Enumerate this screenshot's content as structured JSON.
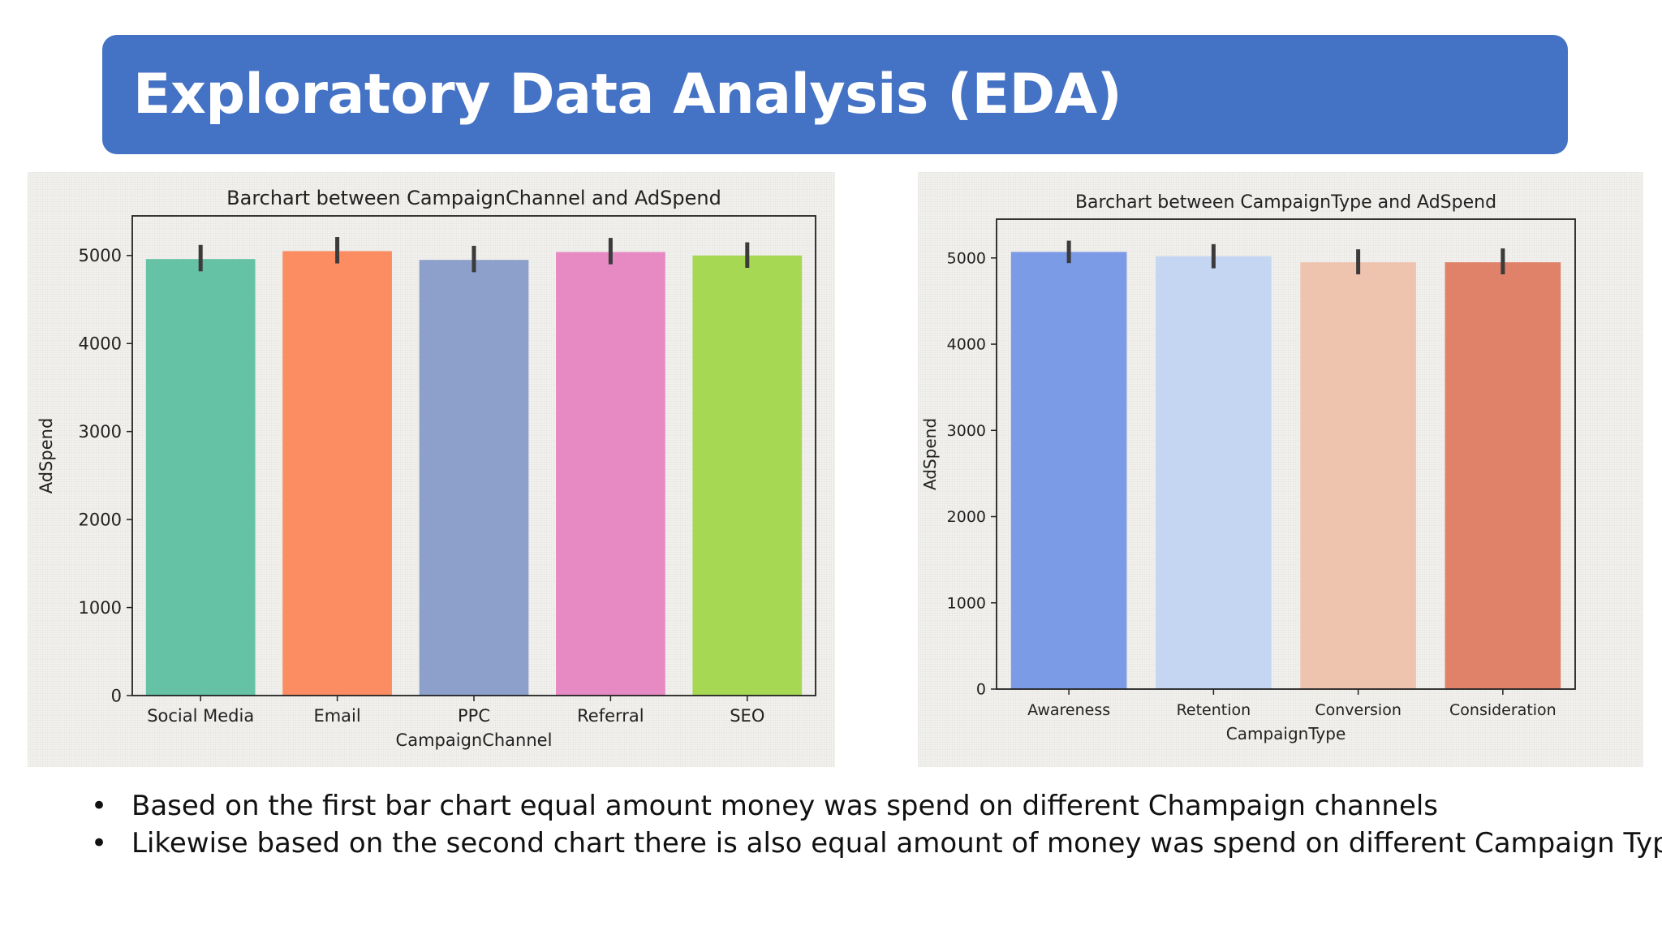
{
  "slide": {
    "title": "Exploratory Data Analysis (EDA)",
    "bullets": [
      "Based on the first bar chart equal amount money was spend on different Champaign channels",
      "Likewise based on the second chart there is also equal amount of money was spend on different Campaign Type"
    ],
    "bullet_symbol": "•",
    "banner_color": "#4472c4"
  },
  "chart_data": [
    {
      "type": "bar",
      "title": "Barchart between CampaignChannel and AdSpend",
      "xlabel": "CampaignChannel",
      "ylabel": "AdSpend",
      "categories": [
        "Social Media",
        "Email",
        "PPC",
        "Referral",
        "SEO"
      ],
      "values": [
        4960,
        5050,
        4950,
        5040,
        5000
      ],
      "error_low": [
        4820,
        4910,
        4810,
        4900,
        4860
      ],
      "error_high": [
        5120,
        5210,
        5110,
        5200,
        5150
      ],
      "colors": [
        "#66c2a5",
        "#fc8d62",
        "#8da0cb",
        "#e78ac3",
        "#a6d854"
      ],
      "ylim": [
        0,
        5450
      ],
      "yticks": [
        0,
        1000,
        2000,
        3000,
        4000,
        5000
      ],
      "grid": false
    },
    {
      "type": "bar",
      "title": "Barchart between CampaignType and AdSpend",
      "xlabel": "CampaignType",
      "ylabel": "AdSpend",
      "categories": [
        "Awareness",
        "Retention",
        "Conversion",
        "Consideration"
      ],
      "values": [
        5070,
        5020,
        4950,
        4950
      ],
      "error_low": [
        4940,
        4880,
        4810,
        4810
      ],
      "error_high": [
        5200,
        5160,
        5100,
        5110
      ],
      "colors": [
        "#7b9be6",
        "#c4d6f2",
        "#efc4ae",
        "#e0826a"
      ],
      "ylim": [
        0,
        5450
      ],
      "yticks": [
        0,
        1000,
        2000,
        3000,
        4000,
        5000
      ],
      "grid": false
    }
  ]
}
